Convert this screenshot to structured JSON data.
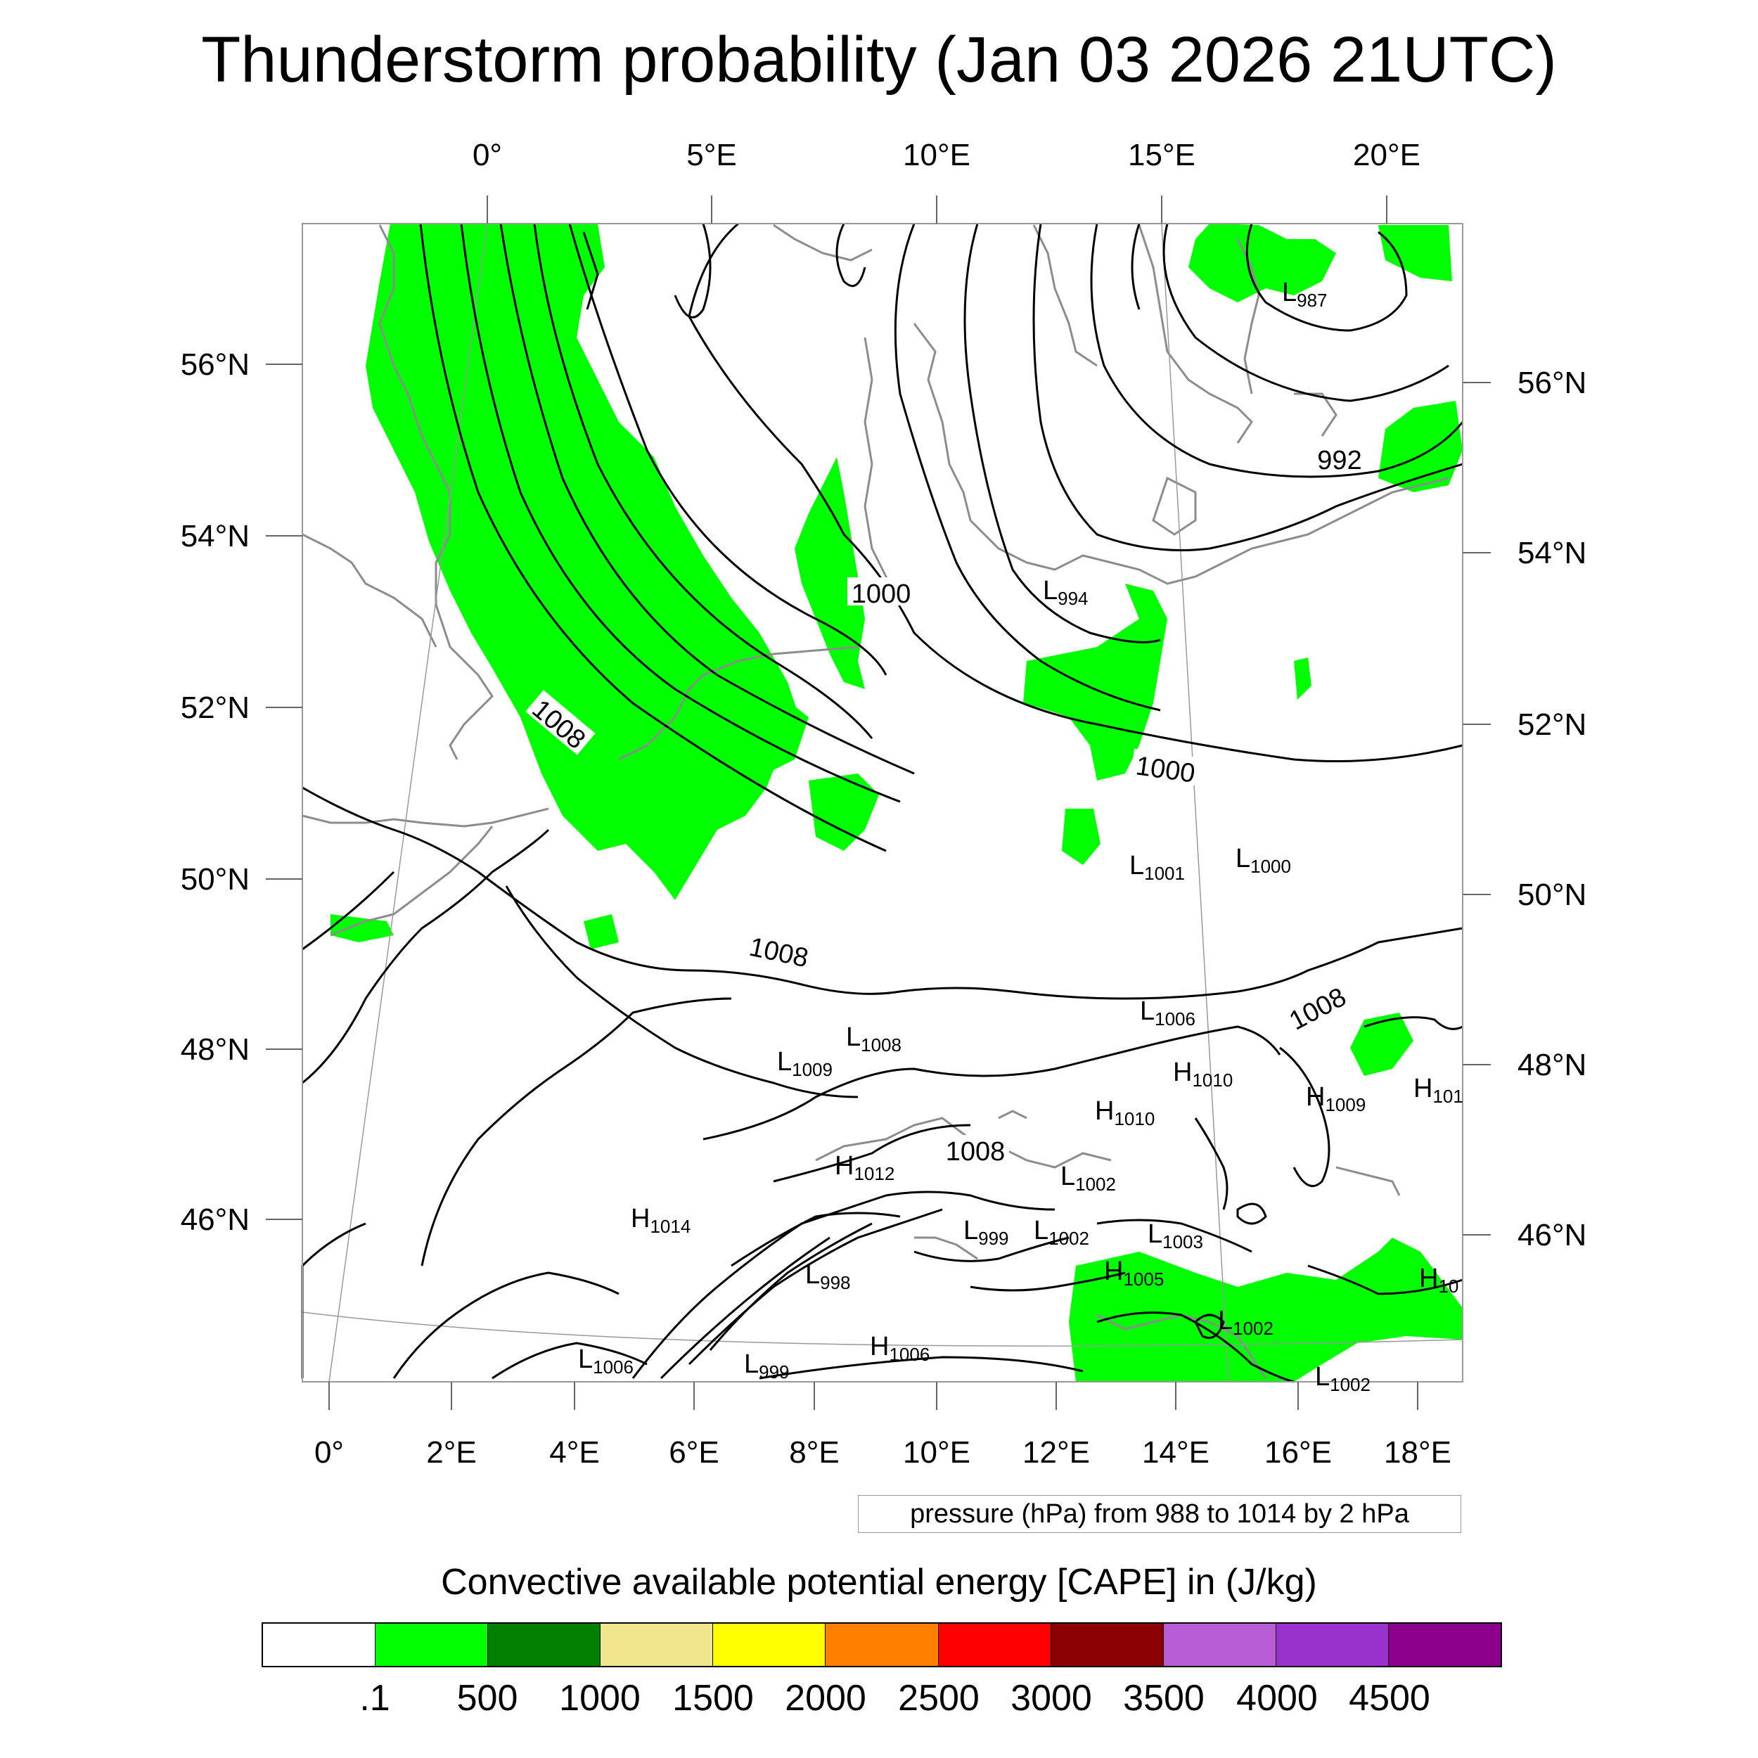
{
  "title": "Thunderstorm probability (Jan 03 2026 21UTC)",
  "axes": {
    "top_lon_labels": [
      "0°",
      "5°E",
      "10°E",
      "15°E",
      "20°E"
    ],
    "bottom_lon_labels": [
      "0°",
      "2°E",
      "4°E",
      "6°E",
      "8°E",
      "10°E",
      "12°E",
      "14°E",
      "16°E",
      "18°E"
    ],
    "left_lat_labels": [
      "56°N",
      "54°N",
      "52°N",
      "50°N",
      "48°N",
      "46°N"
    ],
    "right_lat_labels": [
      "56°N",
      "54°N",
      "52°N",
      "50°N",
      "48°N",
      "46°N"
    ]
  },
  "pressure_labels": [
    {
      "text": "1008",
      "rotate": 40
    },
    {
      "text": "1000",
      "rotate": 0
    },
    {
      "text": "992",
      "rotate": 0
    },
    {
      "text": "1000",
      "rotate": 8
    },
    {
      "text": "1008",
      "rotate": 12
    },
    {
      "text": "1008",
      "rotate": -28
    },
    {
      "text": "1008",
      "rotate": 0
    }
  ],
  "centers": [
    {
      "sym": "L",
      "val": "987"
    },
    {
      "sym": "L",
      "val": "994"
    },
    {
      "sym": "L",
      "val": "1001"
    },
    {
      "sym": "L",
      "val": "1000"
    },
    {
      "sym": "L",
      "val": "1006"
    },
    {
      "sym": "L",
      "val": "1008"
    },
    {
      "sym": "L",
      "val": "1009"
    },
    {
      "sym": "H",
      "val": "1010"
    },
    {
      "sym": "H",
      "val": "1010"
    },
    {
      "sym": "H",
      "val": "1009"
    },
    {
      "sym": "H",
      "val": "101"
    },
    {
      "sym": "H",
      "val": "1012"
    },
    {
      "sym": "L",
      "val": "1002"
    },
    {
      "sym": "H",
      "val": "1014"
    },
    {
      "sym": "L",
      "val": "999"
    },
    {
      "sym": "L",
      "val": "1002"
    },
    {
      "sym": "L",
      "val": "1003"
    },
    {
      "sym": "L",
      "val": "998"
    },
    {
      "sym": "H",
      "val": "1005"
    },
    {
      "sym": "H",
      "val": "10"
    },
    {
      "sym": "L",
      "val": "1002"
    },
    {
      "sym": "L",
      "val": "1006"
    },
    {
      "sym": "L",
      "val": "999"
    },
    {
      "sym": "H",
      "val": "1006"
    },
    {
      "sym": "L",
      "val": "1002"
    }
  ],
  "pressure_note": "pressure (hPa) from 988 to 1014 by 2 hPa",
  "colorbar": {
    "title": "Convective available potential energy [CAPE] in (J/kg)",
    "colors": [
      "#ffffff",
      "#00ff00",
      "#008000",
      "#f0e68c",
      "#ffff00",
      "#ff8000",
      "#ff0000",
      "#8b0000",
      "#b85cd6",
      "#9932cc",
      "#8b008b"
    ],
    "labels": [
      ".1",
      "500",
      "1000",
      "1500",
      "2000",
      "2500",
      "3000",
      "3500",
      "4000",
      "4500"
    ]
  }
}
